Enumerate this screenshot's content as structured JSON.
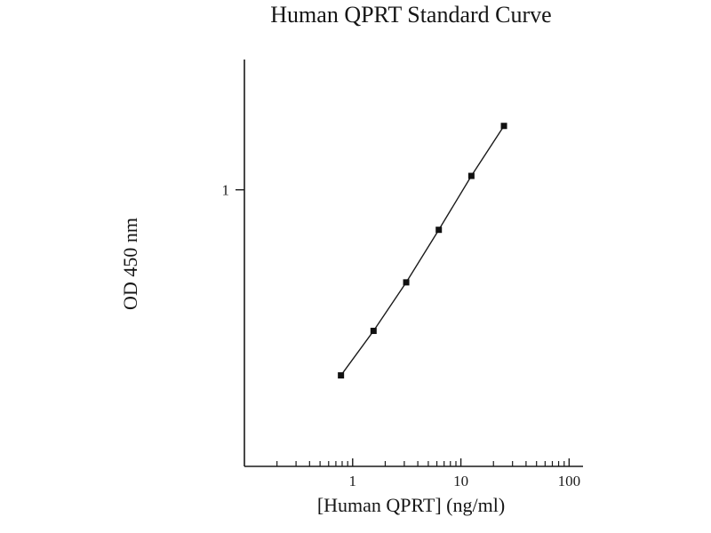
{
  "figure": {
    "background": "#ffffff"
  },
  "chart_data": {
    "type": "scatter",
    "subtype": "line-with-square-markers",
    "title": "Human QPRT Standard Curve",
    "xlabel": "[Human QPRT] (ng/ml)",
    "ylabel": "OD 450 nm",
    "x_scale": "log",
    "y_scale": "log",
    "xlim": [
      0.1,
      120
    ],
    "ylim": [
      0.15,
      2.4
    ],
    "x": [
      0.78,
      1.56,
      3.125,
      6.25,
      12.5,
      25
    ],
    "y": [
      0.28,
      0.38,
      0.53,
      0.76,
      1.1,
      1.55
    ],
    "x_major_ticks": [
      {
        "value": 1,
        "label": "1"
      },
      {
        "value": 10,
        "label": "10"
      },
      {
        "value": 100,
        "label": "100"
      }
    ],
    "x_minor_ticks": [
      0.2,
      0.3,
      0.4,
      0.5,
      0.6,
      0.7,
      0.8,
      0.9,
      2,
      3,
      4,
      5,
      6,
      7,
      8,
      9,
      20,
      30,
      40,
      50,
      60,
      70,
      80,
      90
    ],
    "y_major_ticks": [
      {
        "value": 1,
        "label": "1"
      }
    ],
    "grid": false,
    "legend": "none",
    "marker": "filled-square",
    "colors": {
      "line": "#1a1a1a",
      "marker": "#111111",
      "axis": "#1a1a1a",
      "text": "#1b1b1b"
    }
  }
}
